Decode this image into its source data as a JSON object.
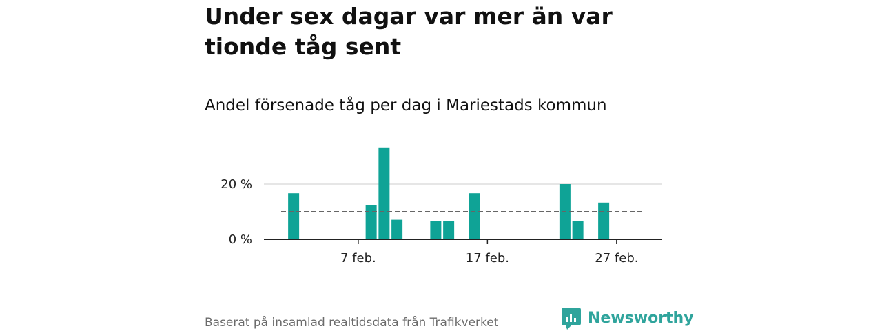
{
  "title": "Under sex dagar var mer än var tionde tåg sent",
  "subtitle": "Andel försenade tåg per dag i Mariestads kommun",
  "footer": {
    "source": "Baserat på insamlad realtidsdata från Trafikverket",
    "brand": "Newsworthy",
    "logo_icon": "bar-chart-icon"
  },
  "colors": {
    "bar": "#0fa396",
    "reference_line": "#666666",
    "grid": "#dddddd",
    "axis": "#222222",
    "brand": "#2fa49c"
  },
  "chart_data": {
    "type": "bar",
    "x_start": "1 feb.",
    "x": [
      2,
      8,
      9,
      10,
      13,
      14,
      16,
      23,
      24,
      26
    ],
    "values": [
      16.7,
      12.5,
      33.3,
      7.1,
      6.7,
      6.7,
      16.7,
      20.0,
      6.7,
      13.3
    ],
    "x_tick_days": [
      7,
      17,
      27
    ],
    "x_tick_labels": [
      "7 feb.",
      "17 feb.",
      "27 feb."
    ],
    "y_ticks": [
      0,
      20
    ],
    "y_tick_labels": [
      "0 %",
      "20 %"
    ],
    "reference_line": 10,
    "ylim": [
      0,
      35
    ],
    "grid": true,
    "legend": "none"
  }
}
